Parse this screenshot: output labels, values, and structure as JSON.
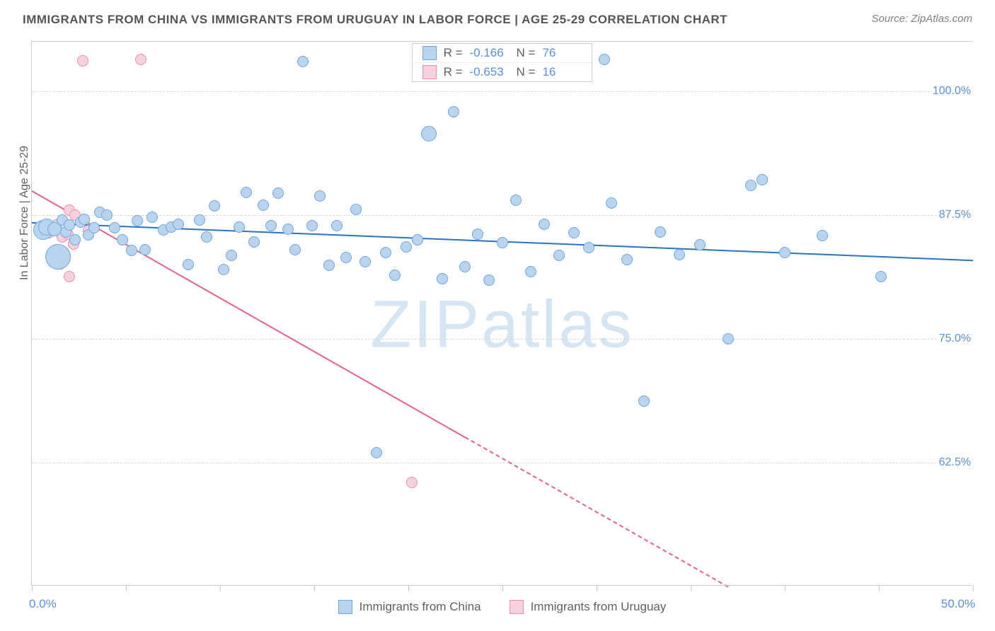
{
  "header": {
    "title": "IMMIGRANTS FROM CHINA VS IMMIGRANTS FROM URUGUAY IN LABOR FORCE | AGE 25-29 CORRELATION CHART",
    "source": "Source: ZipAtlas.com"
  },
  "watermark": {
    "zip": "ZIP",
    "atlas": "atlas"
  },
  "chart": {
    "type": "scatter",
    "background_color": "#ffffff",
    "grid_color": "#d8d8d8",
    "y_axis_title": "In Labor Force | Age 25-29",
    "xlim": [
      0,
      50
    ],
    "ylim": [
      50,
      105
    ],
    "x_ticks": [
      0,
      5,
      10,
      15,
      20,
      25,
      30,
      35,
      40,
      45,
      50
    ],
    "x_tick_labels": {
      "0": "0.0%",
      "50": "50.0%"
    },
    "y_ticks": [
      62.5,
      75.0,
      87.5,
      100.0
    ],
    "y_tick_labels": [
      "62.5%",
      "75.0%",
      "87.5%",
      "100.0%"
    ],
    "axis_label_color": "#5b8fd6",
    "axis_label_fontsize": 16,
    "title_fontsize": 17,
    "title_color": "#555555",
    "point_radius_default": 8,
    "point_stroke_width": 1
  },
  "series": [
    {
      "name": "Immigrants from China",
      "color_fill": "#b9d4ee",
      "color_stroke": "#6fa6de",
      "trend_color": "#2a72c4",
      "trend_width": 2,
      "R": "-0.166",
      "N": "76",
      "trend": {
        "x1": 0,
        "y1": 86.8,
        "x2": 50,
        "y2": 83.0,
        "dash_after_x": 50
      },
      "points": [
        {
          "x": 0.6,
          "y": 86.0,
          "r": 14
        },
        {
          "x": 0.8,
          "y": 86.3,
          "r": 12
        },
        {
          "x": 1.2,
          "y": 86.1,
          "r": 10
        },
        {
          "x": 1.4,
          "y": 83.3,
          "r": 18
        },
        {
          "x": 1.6,
          "y": 87.0
        },
        {
          "x": 1.8,
          "y": 85.8
        },
        {
          "x": 2.0,
          "y": 86.5
        },
        {
          "x": 2.3,
          "y": 85.0
        },
        {
          "x": 2.6,
          "y": 86.8
        },
        {
          "x": 2.8,
          "y": 87.1
        },
        {
          "x": 3.0,
          "y": 85.5
        },
        {
          "x": 3.3,
          "y": 86.2
        },
        {
          "x": 3.6,
          "y": 87.8
        },
        {
          "x": 4.0,
          "y": 87.5
        },
        {
          "x": 4.4,
          "y": 86.2
        },
        {
          "x": 4.8,
          "y": 85.0
        },
        {
          "x": 5.3,
          "y": 83.9
        },
        {
          "x": 5.6,
          "y": 86.9
        },
        {
          "x": 6.0,
          "y": 84.0
        },
        {
          "x": 6.4,
          "y": 87.3
        },
        {
          "x": 7.0,
          "y": 86.0
        },
        {
          "x": 7.4,
          "y": 86.3
        },
        {
          "x": 7.8,
          "y": 86.6
        },
        {
          "x": 8.3,
          "y": 82.5
        },
        {
          "x": 8.9,
          "y": 87.0
        },
        {
          "x": 9.3,
          "y": 85.3
        },
        {
          "x": 9.7,
          "y": 88.4
        },
        {
          "x": 10.2,
          "y": 82.0
        },
        {
          "x": 10.6,
          "y": 83.4
        },
        {
          "x": 11.0,
          "y": 86.3
        },
        {
          "x": 11.4,
          "y": 89.8
        },
        {
          "x": 11.8,
          "y": 84.8
        },
        {
          "x": 12.3,
          "y": 88.5
        },
        {
          "x": 12.7,
          "y": 86.4
        },
        {
          "x": 13.1,
          "y": 89.7
        },
        {
          "x": 13.6,
          "y": 86.1
        },
        {
          "x": 14.0,
          "y": 84.0
        },
        {
          "x": 14.4,
          "y": 103.0
        },
        {
          "x": 14.9,
          "y": 86.4
        },
        {
          "x": 15.3,
          "y": 89.4
        },
        {
          "x": 15.8,
          "y": 82.4
        },
        {
          "x": 16.2,
          "y": 86.4
        },
        {
          "x": 16.7,
          "y": 83.2
        },
        {
          "x": 17.2,
          "y": 88.1
        },
        {
          "x": 17.7,
          "y": 82.8
        },
        {
          "x": 18.3,
          "y": 63.5
        },
        {
          "x": 18.8,
          "y": 83.7
        },
        {
          "x": 19.3,
          "y": 81.4
        },
        {
          "x": 19.9,
          "y": 84.3
        },
        {
          "x": 20.5,
          "y": 85.0
        },
        {
          "x": 21.1,
          "y": 95.7,
          "r": 11
        },
        {
          "x": 21.8,
          "y": 81.1
        },
        {
          "x": 22.4,
          "y": 97.9
        },
        {
          "x": 23.0,
          "y": 82.3
        },
        {
          "x": 23.7,
          "y": 85.6
        },
        {
          "x": 24.3,
          "y": 80.9
        },
        {
          "x": 25.0,
          "y": 84.7
        },
        {
          "x": 25.7,
          "y": 89.0
        },
        {
          "x": 26.5,
          "y": 81.8
        },
        {
          "x": 27.2,
          "y": 86.6
        },
        {
          "x": 28.0,
          "y": 83.4
        },
        {
          "x": 28.8,
          "y": 85.7
        },
        {
          "x": 29.6,
          "y": 84.2
        },
        {
          "x": 30.4,
          "y": 103.2
        },
        {
          "x": 30.8,
          "y": 88.7
        },
        {
          "x": 31.6,
          "y": 83.0
        },
        {
          "x": 32.5,
          "y": 68.7
        },
        {
          "x": 33.4,
          "y": 85.8
        },
        {
          "x": 34.4,
          "y": 83.5
        },
        {
          "x": 35.5,
          "y": 84.5
        },
        {
          "x": 37.0,
          "y": 75.0
        },
        {
          "x": 38.2,
          "y": 90.5
        },
        {
          "x": 38.8,
          "y": 91.1
        },
        {
          "x": 40.0,
          "y": 83.7
        },
        {
          "x": 42.0,
          "y": 85.4
        },
        {
          "x": 45.1,
          "y": 81.3
        }
      ]
    },
    {
      "name": "Immigrants from Uruguay",
      "color_fill": "#f7d2dd",
      "color_stroke": "#e690ab",
      "trend_color": "#e56387",
      "trend_width": 2,
      "R": "-0.653",
      "N": "16",
      "trend": {
        "x1": 0,
        "y1": 90.0,
        "x2": 37,
        "y2": 50.0,
        "dash_after_x": 23
      },
      "points": [
        {
          "x": 0.5,
          "y": 86.2
        },
        {
          "x": 0.7,
          "y": 86.4
        },
        {
          "x": 0.9,
          "y": 85.7
        },
        {
          "x": 1.1,
          "y": 86.0
        },
        {
          "x": 1.3,
          "y": 86.5
        },
        {
          "x": 1.6,
          "y": 85.3
        },
        {
          "x": 1.9,
          "y": 85.6
        },
        {
          "x": 2.0,
          "y": 88.0
        },
        {
          "x": 2.2,
          "y": 84.6
        },
        {
          "x": 1.5,
          "y": 82.6
        },
        {
          "x": 2.3,
          "y": 87.5
        },
        {
          "x": 2.7,
          "y": 103.1
        },
        {
          "x": 3.0,
          "y": 85.9
        },
        {
          "x": 5.8,
          "y": 103.2
        },
        {
          "x": 2.0,
          "y": 81.3
        },
        {
          "x": 20.2,
          "y": 60.5
        }
      ]
    }
  ],
  "legend": {
    "r_label": "R =",
    "n_label": "N ="
  }
}
